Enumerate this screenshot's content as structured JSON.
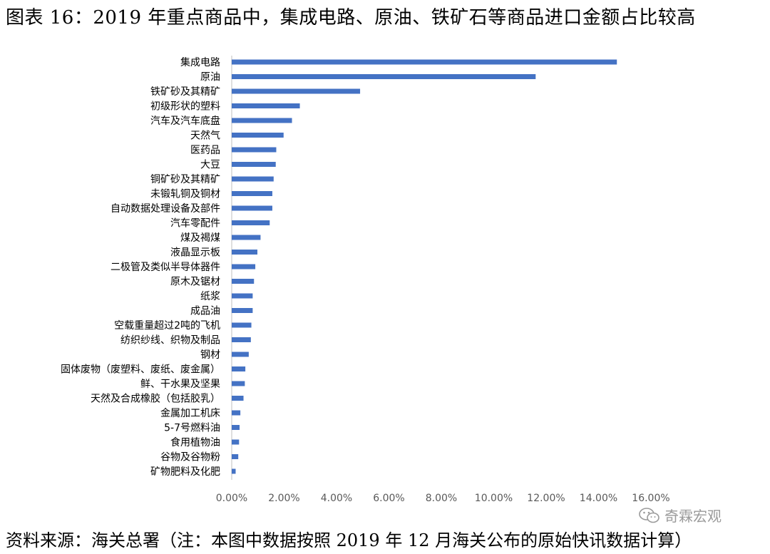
{
  "title": "图表 16：2019 年重点商品中，集成电路、原油、铁矿石等商品进口金额占比较高",
  "source": "资料来源：海关总署（注：本图中数据按照 2019 年 12 月海关公布的原始快讯数据计算）",
  "watermark": {
    "text": "奇霖宏观",
    "icon": "wechat-icon",
    "color": "#9a9a9a"
  },
  "chart_data": {
    "type": "bar",
    "orientation": "horizontal",
    "title": "",
    "xlabel": "",
    "ylabel": "",
    "xlim": [
      0,
      16
    ],
    "ticks": [
      "0.00%",
      "2.00%",
      "4.00%",
      "6.00%",
      "8.00%",
      "10.00%",
      "12.00%",
      "14.00%",
      "16.00%"
    ],
    "grid": false,
    "legend": "none",
    "bar_color": "#4472c4",
    "categories": [
      "集成电路",
      "原油",
      "铁矿砂及其精矿",
      "初级形状的塑料",
      "汽车及汽车底盘",
      "天然气",
      "医药品",
      "大豆",
      "铜矿砂及其精矿",
      "未锻轧铜及铜材",
      "自动数据处理设备及部件",
      "汽车零配件",
      "煤及褐煤",
      "液晶显示板",
      "二极管及类似半导体器件",
      "原木及锯材",
      "纸浆",
      "成品油",
      "空载重量超过2吨的飞机",
      "纺织纱线、织物及制品",
      "钢材",
      "固体废物（废塑料、废纸、废金属）",
      "鲜、干水果及坚果",
      "天然及合成橡胶（包括胶乳）",
      "金属加工机床",
      "5-7号燃料油",
      "食用植物油",
      "谷物及谷物粉",
      "矿物肥料及化肥"
    ],
    "values": [
      14.7,
      11.6,
      4.9,
      2.6,
      2.3,
      1.98,
      1.7,
      1.68,
      1.6,
      1.55,
      1.55,
      1.45,
      1.1,
      0.98,
      0.9,
      0.85,
      0.8,
      0.8,
      0.75,
      0.73,
      0.65,
      0.52,
      0.5,
      0.45,
      0.33,
      0.3,
      0.28,
      0.25,
      0.15
    ]
  }
}
